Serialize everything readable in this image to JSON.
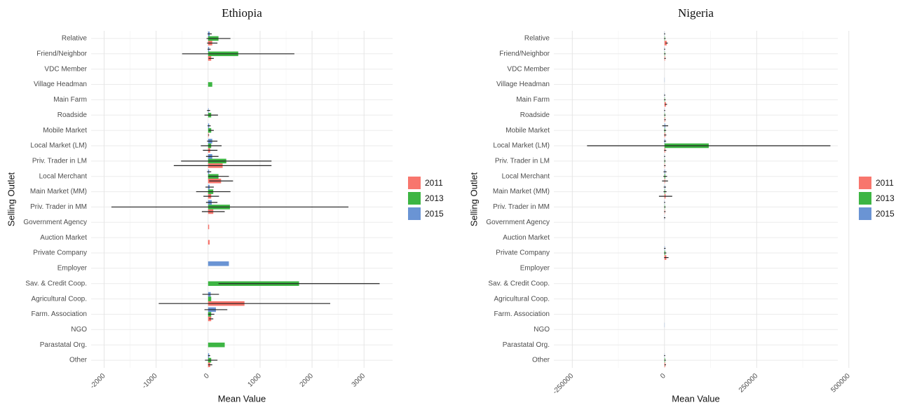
{
  "chart_data": [
    {
      "type": "bar",
      "orientation": "horizontal",
      "title": "Ethiopia",
      "xlabel": "Mean Value",
      "ylabel": "Selling Outlet",
      "categories": [
        "Relative",
        "Friend/Neighbor",
        "VDC Member",
        "Village Headman",
        "Main Farm",
        "Roadside",
        "Mobile Market",
        "Local Market (LM)",
        "Priv. Trader in LM",
        "Local Merchant",
        "Main Market (MM)",
        "Priv. Trader in MM",
        "Government Agency",
        "Auction Market",
        "Private Company",
        "Employer",
        "Sav. & Credit Coop.",
        "Agricultural Coop.",
        "Farm. Association",
        "NGO",
        "Parastatal Org.",
        "Other"
      ],
      "series": [
        {
          "name": "2011",
          "color": "#F8766D",
          "values": [
            80,
            60,
            null,
            null,
            null,
            null,
            10,
            40,
            280,
            250,
            60,
            100,
            20,
            30,
            null,
            null,
            null,
            700,
            60,
            null,
            null,
            40
          ],
          "errors": [
            100,
            50,
            null,
            null,
            null,
            null,
            10,
            140,
            940,
            230,
            150,
            220,
            null,
            null,
            null,
            null,
            null,
            1650,
            40,
            null,
            null,
            40
          ]
        },
        {
          "name": "2013",
          "color": "#3DB543",
          "values": [
            200,
            580,
            null,
            80,
            null,
            60,
            60,
            60,
            350,
            200,
            100,
            420,
            null,
            null,
            null,
            null,
            1750,
            60,
            60,
            null,
            320,
            60
          ],
          "errors": [
            230,
            1080,
            null,
            null,
            null,
            130,
            50,
            200,
            870,
            200,
            330,
            2280,
            null,
            null,
            null,
            null,
            1550,
            null,
            60,
            null,
            null,
            120
          ]
        },
        {
          "name": "2015",
          "color": "#6A94D4",
          "values": [
            30,
            20,
            null,
            null,
            null,
            10,
            20,
            80,
            80,
            20,
            30,
            70,
            null,
            null,
            null,
            400,
            null,
            50,
            150,
            null,
            null,
            20
          ],
          "errors": [
            40,
            30,
            null,
            null,
            null,
            30,
            30,
            100,
            120,
            40,
            80,
            110,
            null,
            null,
            null,
            null,
            null,
            160,
            220,
            null,
            null,
            20
          ]
        }
      ],
      "xlim": [
        -2250,
        3550
      ],
      "xticks": [
        -2000,
        -1000,
        0,
        1000,
        2000,
        3000
      ],
      "grid": true,
      "legend": "right"
    },
    {
      "type": "bar",
      "orientation": "horizontal",
      "title": "Nigeria",
      "xlabel": "Mean Value",
      "ylabel": "Selling Outlet",
      "categories": [
        "Relative",
        "Friend/Neighbor",
        "VDC Member",
        "Village Headman",
        "Main Farm",
        "Roadside",
        "Mobile Market",
        "Local Market (LM)",
        "Priv. Trader in LM",
        "Local Merchant",
        "Main Market (MM)",
        "Priv. Trader in MM",
        "Government Agency",
        "Auction Market",
        "Private Company",
        "Employer",
        "Sav. & Credit Coop.",
        "Agricultural Coop.",
        "Farm. Association",
        "NGO",
        "Parastatal Org.",
        "Other"
      ],
      "series": [
        {
          "name": "2011",
          "color": "#F8766D",
          "values": [
            6000,
            1500,
            null,
            null,
            4000,
            1500,
            2000,
            2000,
            1000,
            1500,
            3000,
            1000,
            null,
            null,
            5000,
            null,
            null,
            null,
            null,
            null,
            null,
            2000
          ],
          "errors": [
            3000,
            2000,
            null,
            null,
            3000,
            2000,
            3000,
            3000,
            2000,
            8000,
            18000,
            2000,
            null,
            null,
            6000,
            null,
            null,
            null,
            null,
            null,
            null,
            2000
          ]
        },
        {
          "name": "2013",
          "color": "#3DB543",
          "values": [
            1000,
            1000,
            null,
            null,
            1000,
            1000,
            1500,
            120000,
            1000,
            2000,
            1500,
            1000,
            null,
            null,
            2000,
            null,
            null,
            null,
            null,
            null,
            null,
            1500
          ],
          "errors": [
            2000,
            2000,
            null,
            null,
            2000,
            2000,
            3000,
            330000,
            2000,
            5000,
            4000,
            2000,
            null,
            null,
            3000,
            null,
            null,
            null,
            null,
            null,
            null,
            2000
          ]
        },
        {
          "name": "2015",
          "color": "#6A94D4",
          "values": [
            500,
            500,
            null,
            500,
            500,
            500,
            2000,
            1500,
            500,
            1500,
            1000,
            500,
            500,
            null,
            1000,
            null,
            null,
            null,
            null,
            500,
            null,
            500
          ],
          "errors": [
            1500,
            1500,
            null,
            null,
            1500,
            1500,
            8000,
            3000,
            1500,
            4000,
            3000,
            1500,
            2000,
            null,
            2000,
            null,
            null,
            null,
            null,
            null,
            null,
            1500
          ]
        }
      ],
      "xlim": [
        -300000,
        470000
      ],
      "xticks": [
        -250000,
        0,
        250000,
        500000
      ],
      "grid": true,
      "legend": "right"
    }
  ]
}
